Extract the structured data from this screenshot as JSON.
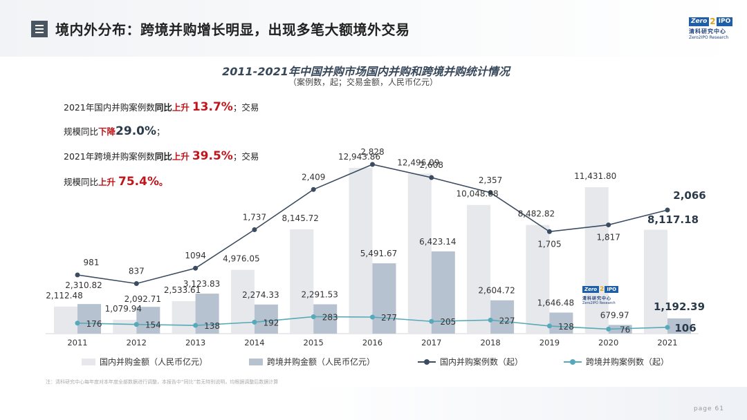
{
  "header": {
    "title": "境内外分布：跨境并购增长明显，出现多笔大额境外交易"
  },
  "logo": {
    "zero": "Zero",
    "two": "2",
    "ipo": "IPO",
    "cn": "清科研究中心",
    "en": "Zero2IPO Research"
  },
  "notes": {
    "l1a": "2021年国内并购案例数",
    "l1b": "同比",
    "l1c": "上升",
    "l1d": "13.7%",
    "l1e": "；交易",
    "l2a": "规模同比",
    "l2b": "下降",
    "l2c": "29.0%",
    "l2d": "；",
    "l3a": "2021年跨境并购案例数",
    "l3b": "同比",
    "l3c": "上升",
    "l3d": "39.5%",
    "l3e": "；交易",
    "l4a": "规模同比",
    "l4b": "上升",
    "l4c": "75.4%",
    "l4d": "。"
  },
  "footnote": "注：清科研究中心每年度对本年度全部数据进行调整，本报告中“同比”若无特别说明，均根据调整后数据计算",
  "page": {
    "label": "page",
    "number": "61"
  },
  "colors": {
    "domestic_amount": "#e6e8ec",
    "cross_amount": "#b6c2d0",
    "domestic_count": "#3b4c61",
    "cross_count": "#55a9b8"
  },
  "chart_data": {
    "type": "bar",
    "title": "2011-2021年中国并购市场国内并购和跨境并购统计情况",
    "subtitle": "（案例数，起；交易金额，人民币亿元）",
    "categories": [
      "2011",
      "2012",
      "2013",
      "2014",
      "2015",
      "2016",
      "2017",
      "2018",
      "2019",
      "2020",
      "2021"
    ],
    "series": [
      {
        "name": "国内并购金额（人民币亿元）",
        "kind": "bar",
        "values": [
          2112.48,
          1079.94,
          2533.61,
          4976.05,
          8145.72,
          12943.86,
          12496.09,
          10048.88,
          8482.82,
          11431.8,
          8117.18
        ],
        "labels": [
          "2,112.48",
          "1,079.94",
          "2,533.61",
          "4,976.05",
          "8,145.72",
          "12,943.86",
          "12,496.09",
          "10,048.88",
          "8,482.82",
          "11,431.80",
          "8,117.18"
        ]
      },
      {
        "name": "跨境并购金额（人民币亿元）",
        "kind": "bar",
        "values": [
          2310.82,
          2092.71,
          3123.83,
          2274.33,
          2291.53,
          5491.67,
          6423.14,
          2604.72,
          1646.48,
          679.97,
          1192.39
        ],
        "labels": [
          "2,310.82",
          "2,092.71",
          "3,123.83",
          "2,274.33",
          "2,291.53",
          "5,491.67",
          "6,423.14",
          "2,604.72",
          "1,646.48",
          "679.97",
          "1,192.39"
        ]
      },
      {
        "name": "国内并购案例数（起）",
        "kind": "line",
        "values": [
          981,
          837,
          1094,
          1737,
          2409,
          2828,
          2608,
          2357,
          1705,
          1817,
          2066
        ],
        "labels": [
          "981",
          "837",
          "1094",
          "1,737",
          "2,409",
          "2,828",
          "2,608",
          "2,357",
          "1,705",
          "1,817",
          "2,066"
        ]
      },
      {
        "name": "跨境并购案例数（起）",
        "kind": "line",
        "values": [
          176,
          154,
          138,
          192,
          283,
          277,
          205,
          227,
          128,
          76,
          106
        ],
        "labels": [
          "176",
          "154",
          "138",
          "192",
          "283",
          "277",
          "205",
          "227",
          "128",
          "76",
          "106"
        ]
      }
    ],
    "ylim_amount": [
      0,
      14000
    ],
    "ylim_count": [
      0,
      3000
    ],
    "legend_position": "bottom",
    "grid": false
  }
}
